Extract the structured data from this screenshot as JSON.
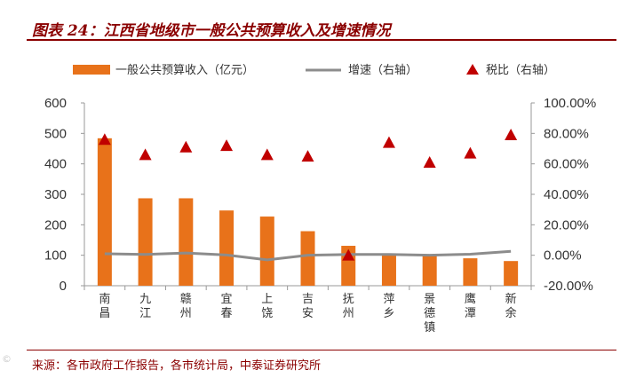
{
  "header": {
    "title": "图表 24：江西省地级市一般公共预算收入及增速情况"
  },
  "footer": {
    "source": "来源：各市政府工作报告，各市统计局，中泰证券研究所",
    "watermark": "©"
  },
  "colors": {
    "bar": "#E8721A",
    "growth_line": "#8C8C8C",
    "tax_marker": "#C00000",
    "title": "#8B0000"
  },
  "chart_data": {
    "type": "bar",
    "categories": [
      "南昌",
      "九江",
      "赣州",
      "宜春",
      "上饶",
      "吉安",
      "抚州",
      "萍乡",
      "景德镇",
      "鹰潭",
      "新余"
    ],
    "series": [
      {
        "name": "一般公共预算收入（亿元）",
        "type": "bar",
        "axis": "left",
        "values": [
          484,
          287,
          287,
          247,
          227,
          179,
          131,
          105,
          102,
          90,
          81
        ]
      },
      {
        "name": "增速（右轴）",
        "type": "line",
        "axis": "right",
        "values": [
          1.0,
          0.5,
          1.5,
          0.2,
          -3.0,
          0.0,
          0.5,
          0.5,
          0.0,
          0.7,
          2.6
        ]
      },
      {
        "name": "税比（右轴）",
        "type": "marker",
        "axis": "right",
        "values": [
          76.0,
          66.0,
          71.0,
          72.0,
          66.0,
          65.0,
          0.0,
          74.0,
          61.0,
          67.0,
          79.0
        ]
      }
    ],
    "y_left": {
      "lim": [
        0,
        600
      ],
      "ticks": [
        "0",
        "100",
        "200",
        "300",
        "400",
        "500",
        "600"
      ]
    },
    "y_right": {
      "lim": [
        -20,
        100
      ],
      "ticks": [
        "-20.00%",
        "0.00%",
        "20.00%",
        "40.00%",
        "60.00%",
        "80.00%",
        "100.00%"
      ]
    },
    "legend_position": "top",
    "grid": false
  }
}
